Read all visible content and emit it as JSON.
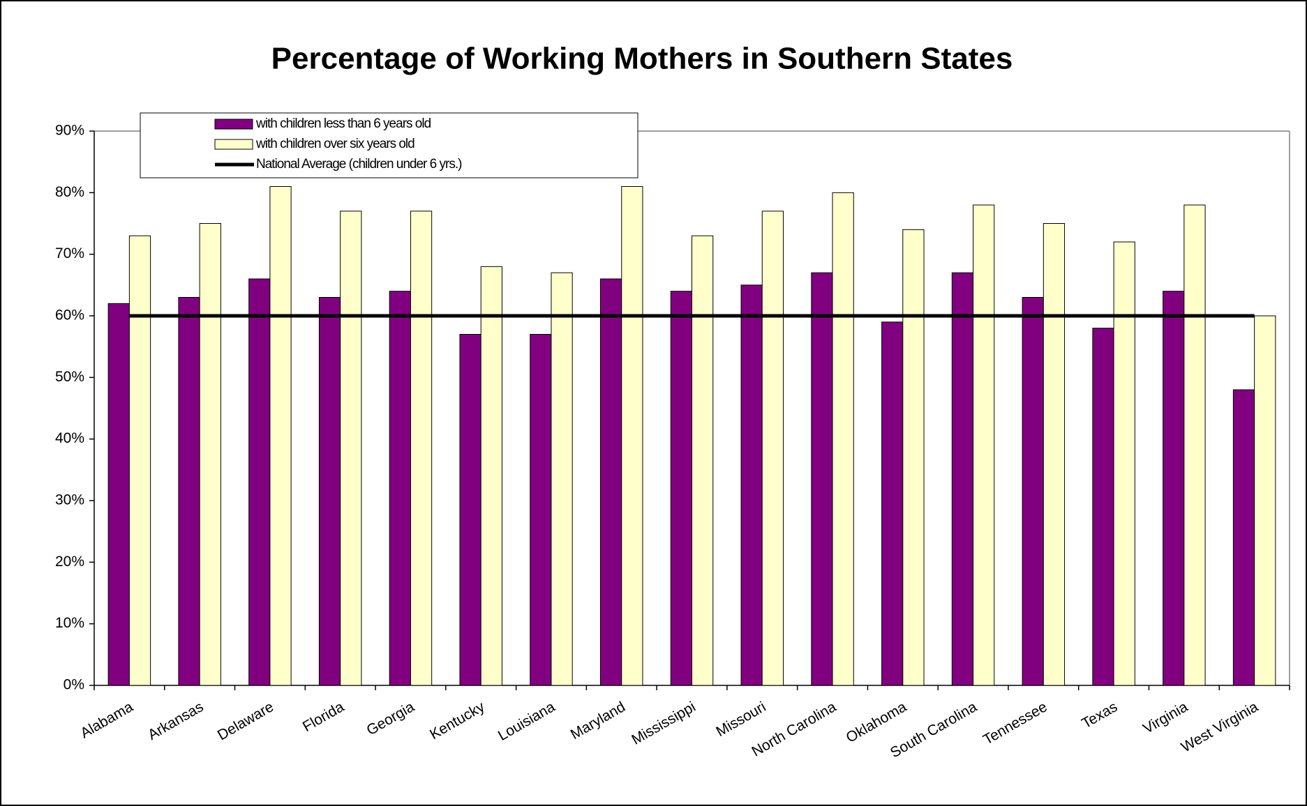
{
  "chart_data": {
    "type": "bar",
    "title": "Percentage of Working Mothers in Southern States",
    "categories": [
      "Alabama",
      "Arkansas",
      "Delaware",
      "Florida",
      "Georgia",
      "Kentucky",
      "Louisiana",
      "Maryland",
      "Mississippi",
      "Missouri",
      "North Carolina",
      "Oklahoma",
      "South Carolina",
      "Tennessee",
      "Texas",
      "Virginia",
      "West Virginia"
    ],
    "series": [
      {
        "name": "with children less than 6 years old",
        "color": "#800080",
        "values": [
          62,
          63,
          66,
          63,
          64,
          57,
          57,
          66,
          64,
          65,
          67,
          59,
          67,
          63,
          58,
          64,
          48
        ]
      },
      {
        "name": "with children over six years old",
        "color": "#ffffcc",
        "values": [
          73,
          75,
          81,
          77,
          77,
          68,
          67,
          81,
          73,
          77,
          80,
          74,
          78,
          75,
          72,
          78,
          60
        ]
      }
    ],
    "reference_line": {
      "name": "National Average (children under 6 yrs.)",
      "color": "#000000",
      "value": 60
    },
    "ylim": [
      0,
      90
    ],
    "yticks": [
      {
        "value": 0,
        "label": "0%"
      },
      {
        "value": 10,
        "label": "10%"
      },
      {
        "value": 20,
        "label": "20%"
      },
      {
        "value": 30,
        "label": "30%"
      },
      {
        "value": 40,
        "label": "40%"
      },
      {
        "value": 50,
        "label": "50%"
      },
      {
        "value": 60,
        "label": "60%"
      },
      {
        "value": 70,
        "label": "70%"
      },
      {
        "value": 80,
        "label": "80%"
      },
      {
        "value": 90,
        "label": "90%"
      }
    ],
    "legend": "top-left"
  }
}
